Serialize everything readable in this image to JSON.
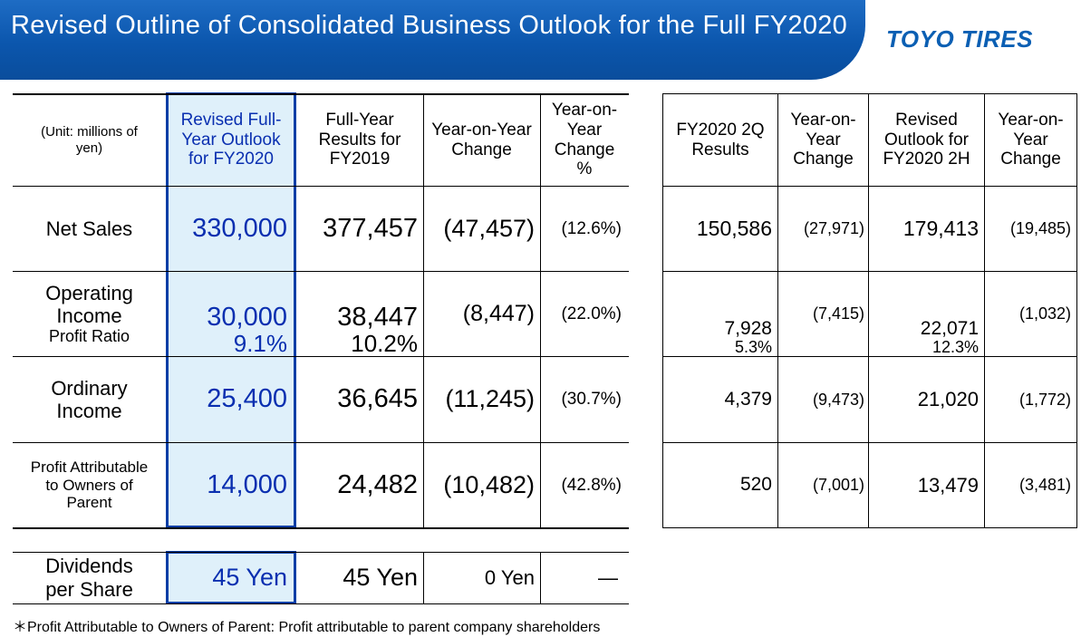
{
  "header": {
    "title": "Revised Outline of Consolidated Business Outlook for the Full FY2020",
    "logo": "TOYO TIRES"
  },
  "left_table": {
    "unit_label": "(Unit: millions of yen)",
    "columns": [
      "Revised Full-Year Outlook for FY2020",
      "Full-Year Results for FY2019",
      "Year-on-Year Change",
      "Year-on-Year Change %"
    ],
    "rows": [
      {
        "label": "Net Sales",
        "sublabel": "",
        "outlook": "330,000",
        "outlook_sub": "",
        "results": "377,457",
        "results_sub": "",
        "change": "(47,457)",
        "pct": "(12.6%)"
      },
      {
        "label": "Operating Income",
        "sublabel": "Profit Ratio",
        "outlook": "30,000",
        "outlook_sub": "9.1%",
        "results": "38,447",
        "results_sub": "10.2%",
        "change": "(8,447)",
        "pct": "(22.0%)"
      },
      {
        "label": "Ordinary Income",
        "sublabel": "",
        "outlook": "25,400",
        "outlook_sub": "",
        "results": "36,645",
        "results_sub": "",
        "change": "(11,245)",
        "pct": "(30.7%)"
      },
      {
        "label": "Profit Attributable to Owners of Parent",
        "sublabel": "",
        "outlook": "14,000",
        "outlook_sub": "",
        "results": "24,482",
        "results_sub": "",
        "change": "(10,482)",
        "pct": "(42.8%)"
      }
    ],
    "dividends": {
      "label": "Dividends per Share",
      "outlook": "45 Yen",
      "results": "45 Yen",
      "change": "0 Yen",
      "pct": "—"
    }
  },
  "right_table": {
    "columns": [
      "FY2020 2Q Results",
      "Year-on-Year Change",
      "Revised Outlook for FY2020 2H",
      "Year-on-Year Change"
    ],
    "rows": [
      {
        "q2": "150,586",
        "q2_sub": "",
        "q2_change": "(27,971)",
        "h2": "179,413",
        "h2_sub": "",
        "h2_change": "(19,485)"
      },
      {
        "q2": "7,928",
        "q2_sub": "5.3%",
        "q2_change": "(7,415)",
        "h2": "22,071",
        "h2_sub": "12.3%",
        "h2_change": "(1,032)"
      },
      {
        "q2": "4,379",
        "q2_sub": "",
        "q2_change": "(9,473)",
        "h2": "21,020",
        "h2_sub": "",
        "h2_change": "(1,772)"
      },
      {
        "q2": "520",
        "q2_sub": "",
        "q2_change": "(7,001)",
        "h2": "13,479",
        "h2_sub": "",
        "h2_change": "(3,481)"
      }
    ]
  },
  "footnote": "＊Profit Attributable to Owners of Parent: Profit attributable to parent company shareholders"
}
